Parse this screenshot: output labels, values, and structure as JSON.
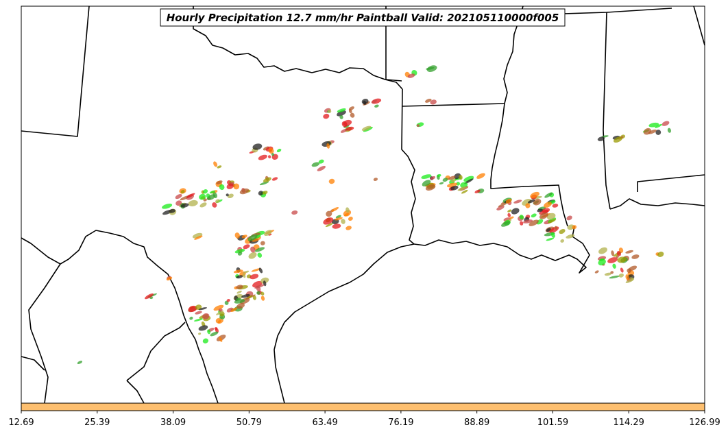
{
  "map": {
    "title": "Hourly Precipitation 12.7 mm/hr Paintball Valid: 202105110000f005",
    "colorbar": {
      "color": "#fdbf6f",
      "tick_labels": [
        "12.69",
        "25.39",
        "38.09",
        "50.79",
        "63.49",
        "76.19",
        "88.89",
        "101.59",
        "114.29",
        "126.99"
      ]
    },
    "member_colors": [
      "#e31a1c",
      "#ff7f00",
      "#33a02c",
      "#1aeb1a",
      "#b15928",
      "#9a9a00",
      "#222222",
      "#b2b24c",
      "#c84848"
    ],
    "frame_color": "#000000",
    "background_color": "#ffffff"
  }
}
